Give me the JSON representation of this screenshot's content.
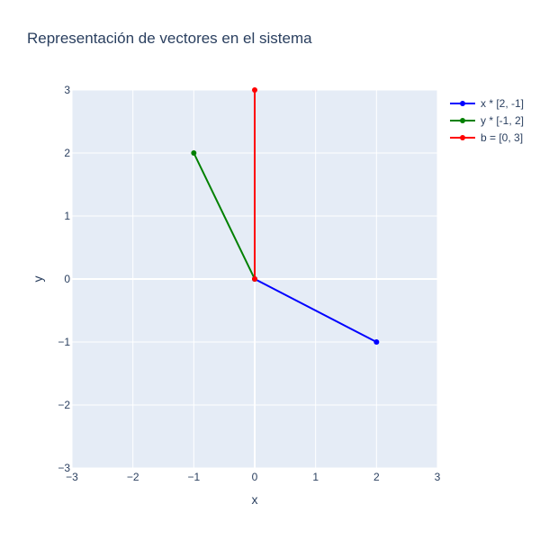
{
  "chart_data": {
    "type": "line",
    "title": "Representación de vectores en el sistema",
    "xlabel": "x",
    "ylabel": "y",
    "xlim": [
      -3,
      3
    ],
    "ylim": [
      -3,
      3
    ],
    "xticks": [
      "−3",
      "−2",
      "−1",
      "0",
      "1",
      "2",
      "3"
    ],
    "yticks": [
      "−3",
      "−2",
      "−1",
      "0",
      "1",
      "2",
      "3"
    ],
    "grid": true,
    "legend_position": "right",
    "plot_background": "#e5ecf6",
    "series": [
      {
        "name": "x * [2, -1]",
        "x": [
          0,
          2
        ],
        "y": [
          0,
          -1
        ],
        "color": "#0000ff"
      },
      {
        "name": "y * [-1, 2]",
        "x": [
          0,
          -1
        ],
        "y": [
          0,
          2
        ],
        "color": "#008000"
      },
      {
        "name": "b = [0, 3]",
        "x": [
          0,
          0
        ],
        "y": [
          0,
          3
        ],
        "color": "#ff0000"
      }
    ]
  }
}
